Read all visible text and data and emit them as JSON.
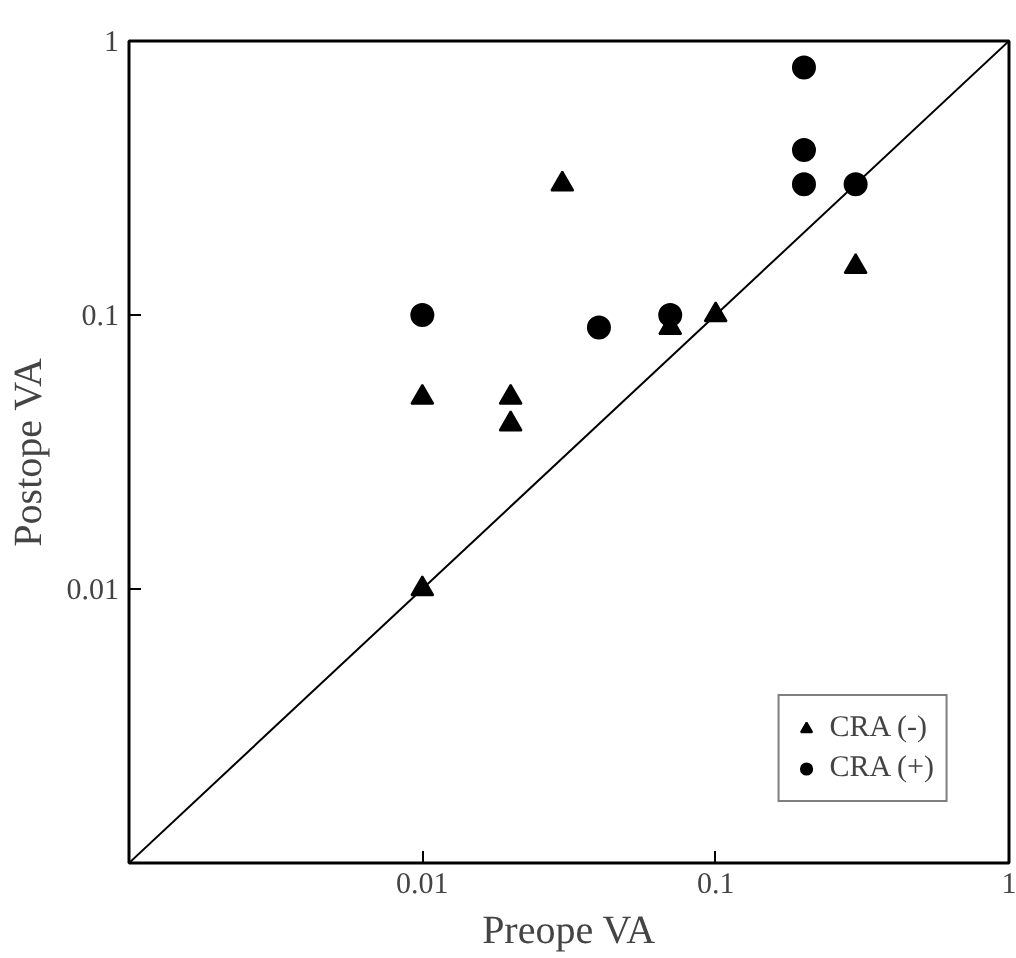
{
  "chart_data": {
    "type": "scatter",
    "xlabel": "Preope VA",
    "ylabel": "Postope VA",
    "log": "xy",
    "grid": false,
    "legend": "bottom right",
    "xlim": [
      0.001,
      1
    ],
    "ylim": [
      0.001,
      1
    ],
    "xticks": [
      0.01,
      0.1,
      1
    ],
    "yticks": [
      0.01,
      0.1,
      1
    ],
    "series": [
      {
        "name": "CRA (-)",
        "color": "#000000",
        "marker": "triangle",
        "x": [
          0.01,
          0.01,
          0.02,
          0.02,
          0.03,
          0.07,
          0.1,
          0.3
        ],
        "values": [
          0.01,
          0.05,
          0.05,
          0.04,
          0.3,
          0.09,
          0.1,
          0.15
        ]
      },
      {
        "name": "CRA (+)",
        "color": "#000000",
        "marker": "circle",
        "x": [
          0.01,
          0.04,
          0.07,
          0.2,
          0.2,
          0.2,
          0.3
        ],
        "values": [
          0.1,
          0.09,
          0.1,
          0.8,
          0.4,
          0.3,
          0.3
        ]
      },
      {
        "type": "line",
        "color": "#000000",
        "line_style": "solid",
        "marker": "none",
        "x": [
          0.001,
          1
        ],
        "values": [
          0.001,
          1
        ]
      }
    ]
  }
}
